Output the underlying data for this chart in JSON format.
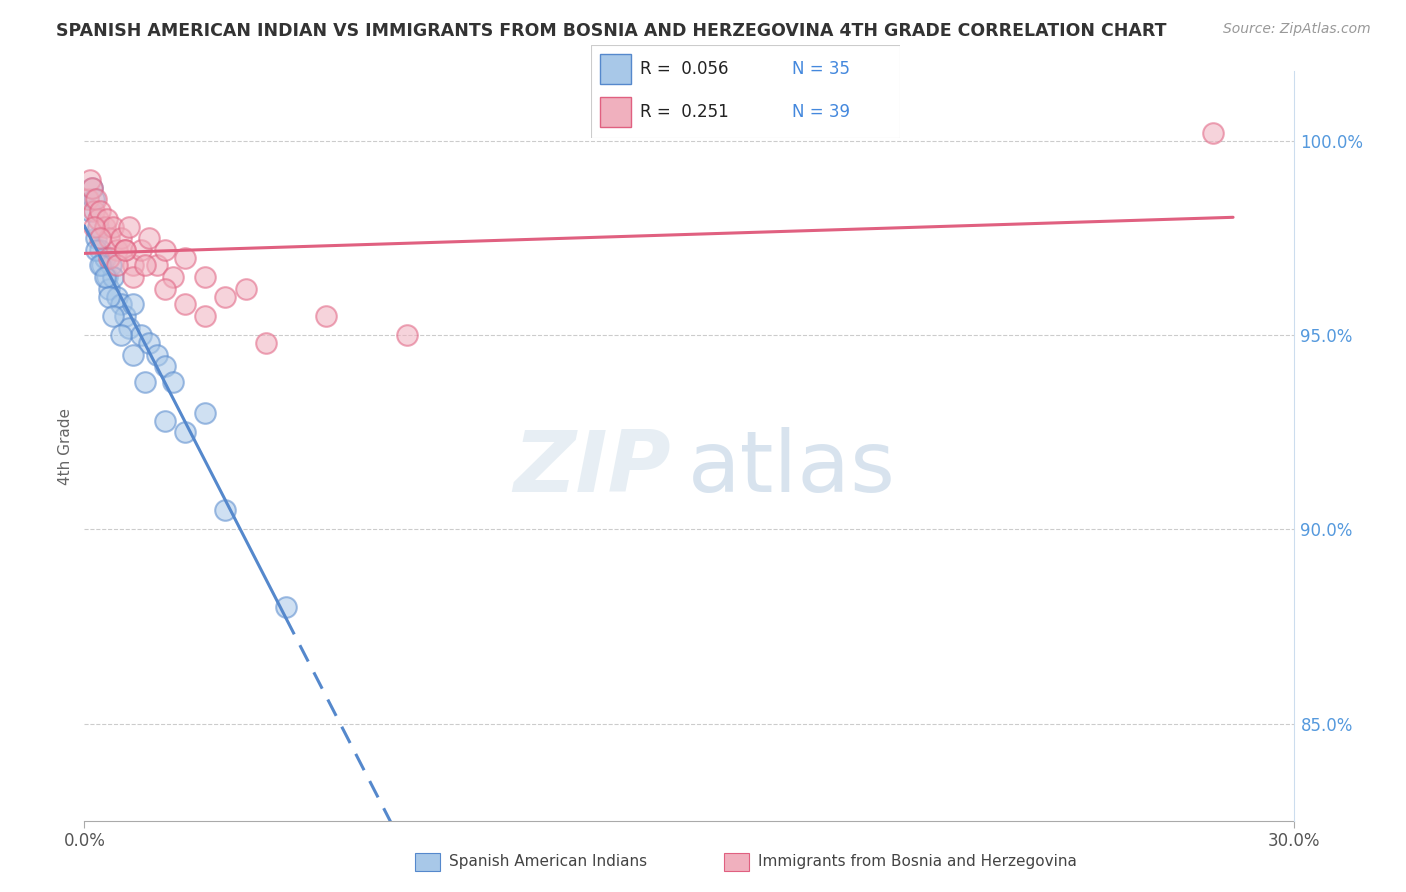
{
  "title": "SPANISH AMERICAN INDIAN VS IMMIGRANTS FROM BOSNIA AND HERZEGOVINA 4TH GRADE CORRELATION CHART",
  "source": "Source: ZipAtlas.com",
  "ylabel": "4th Grade",
  "y_ticks": [
    85.0,
    90.0,
    95.0,
    100.0
  ],
  "y_tick_labels": [
    "85.0%",
    "90.0%",
    "95.0%",
    "100.0%"
  ],
  "xmin": 0.0,
  "xmax": 30.0,
  "ymin": 82.5,
  "ymax": 101.8,
  "blue_color": "#a8c8e8",
  "pink_color": "#f0b0be",
  "blue_line_color": "#5588cc",
  "pink_line_color": "#e06080",
  "blue_scatter_x": [
    0.15,
    0.2,
    0.25,
    0.3,
    0.35,
    0.4,
    0.45,
    0.5,
    0.55,
    0.6,
    0.65,
    0.7,
    0.8,
    0.9,
    1.0,
    1.1,
    1.2,
    1.4,
    1.6,
    1.8,
    2.0,
    2.2,
    2.5,
    3.0,
    0.3,
    0.4,
    0.5,
    0.6,
    0.7,
    0.9,
    1.2,
    1.5,
    2.0,
    3.5,
    5.0
  ],
  "blue_scatter_y": [
    98.2,
    98.8,
    98.5,
    97.5,
    97.8,
    97.2,
    96.8,
    97.0,
    96.5,
    96.2,
    96.8,
    96.5,
    96.0,
    95.8,
    95.5,
    95.2,
    95.8,
    95.0,
    94.8,
    94.5,
    94.2,
    93.8,
    92.5,
    93.0,
    97.2,
    96.8,
    96.5,
    96.0,
    95.5,
    95.0,
    94.5,
    93.8,
    92.8,
    90.5,
    88.0
  ],
  "pink_scatter_x": [
    0.1,
    0.15,
    0.2,
    0.25,
    0.3,
    0.35,
    0.4,
    0.5,
    0.55,
    0.6,
    0.7,
    0.8,
    0.9,
    1.0,
    1.1,
    1.2,
    1.4,
    1.6,
    1.8,
    2.0,
    2.2,
    2.5,
    3.0,
    3.5,
    4.0,
    0.25,
    0.4,
    0.6,
    0.8,
    1.0,
    1.2,
    1.5,
    2.0,
    2.5,
    3.0,
    4.5,
    6.0,
    8.0,
    28.0
  ],
  "pink_scatter_y": [
    98.5,
    99.0,
    98.8,
    98.2,
    98.5,
    98.0,
    98.2,
    97.8,
    98.0,
    97.5,
    97.8,
    97.2,
    97.5,
    97.2,
    97.8,
    96.8,
    97.2,
    97.5,
    96.8,
    97.2,
    96.5,
    97.0,
    96.5,
    96.0,
    96.2,
    97.8,
    97.5,
    97.0,
    96.8,
    97.2,
    96.5,
    96.8,
    96.2,
    95.8,
    95.5,
    94.8,
    95.5,
    95.0,
    100.2
  ],
  "blue_trend_start_x": 0.0,
  "blue_trend_solid_end_x": 5.0,
  "blue_trend_dash_end_x": 29.5,
  "pink_trend_start_x": 0.0,
  "pink_trend_end_x": 28.5
}
